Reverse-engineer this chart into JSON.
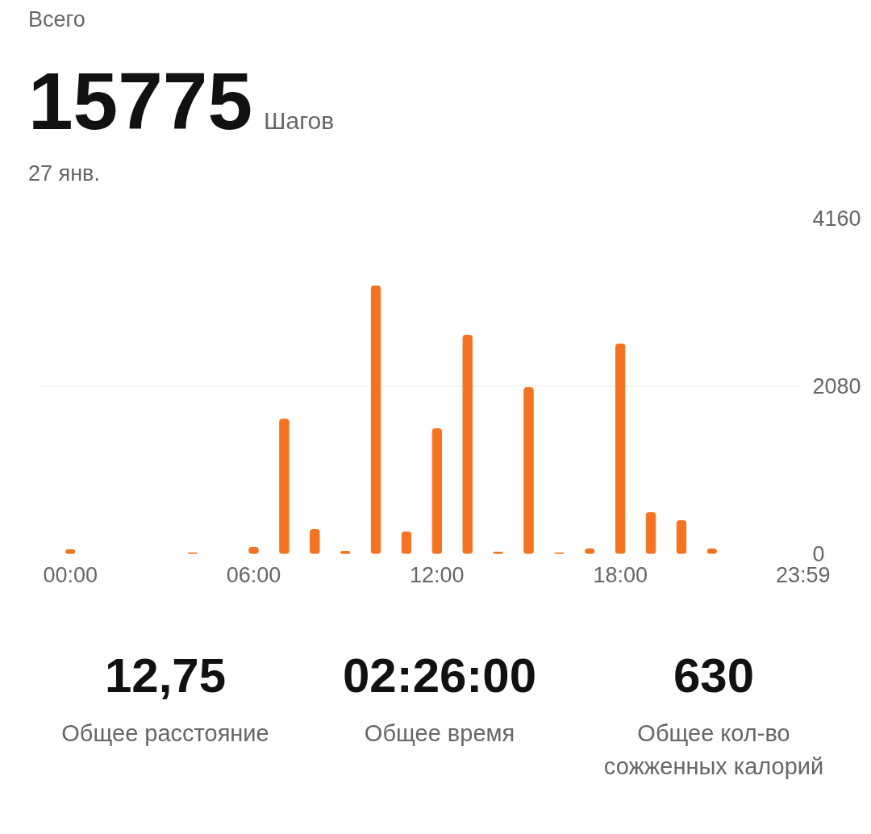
{
  "chart_data": {
    "type": "bar",
    "title": "Всего",
    "subtitle": "27 янв.",
    "annotations": [
      "15775",
      "Шагов",
      "12,75",
      "Общее расстояние",
      "02:26:00",
      "Общее время",
      "630",
      "Общее кол-во сожженных калорий"
    ],
    "x": [
      0,
      1,
      2,
      3,
      4,
      5,
      6,
      7,
      8,
      9,
      10,
      11,
      12,
      13,
      14,
      15,
      16,
      17,
      18,
      19,
      20,
      21
    ],
    "values": [
      50,
      null,
      null,
      null,
      10,
      null,
      80,
      1670,
      300,
      30,
      3320,
      270,
      1550,
      2710,
      20,
      2060,
      10,
      60,
      2600,
      510,
      410,
      60
    ],
    "color": "#f47321",
    "xlim": [
      -1.1,
      24.0
    ],
    "xticks": [
      {
        "value": 0,
        "label": "00:00"
      },
      {
        "value": 6,
        "label": "06:00"
      },
      {
        "value": 12,
        "label": "12:00"
      },
      {
        "value": 18,
        "label": "18:00"
      },
      {
        "value": 23.98,
        "label": "23:59"
      }
    ],
    "ylim": [
      0,
      4160
    ],
    "yticks": [
      0,
      2080,
      4160
    ],
    "grid": "y"
  }
}
